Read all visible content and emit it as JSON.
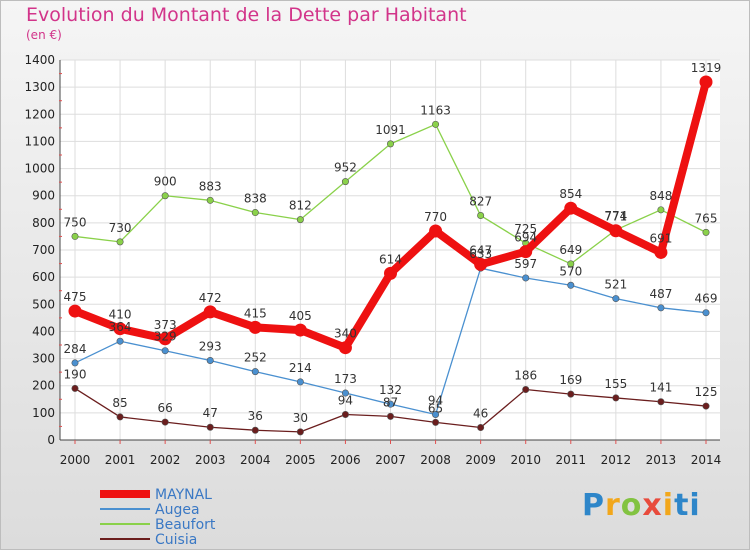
{
  "title": "Evolution du Montant de la Dette par Habitant",
  "subtitle": "(en €)",
  "logo": "Proxiti",
  "chart_data": {
    "type": "line",
    "x": [
      2000,
      2001,
      2002,
      2003,
      2004,
      2005,
      2006,
      2007,
      2008,
      2009,
      2010,
      2011,
      2012,
      2013,
      2014
    ],
    "ylim": [
      0,
      1400
    ],
    "yticks": [
      0,
      100,
      200,
      300,
      400,
      500,
      600,
      700,
      800,
      900,
      1000,
      1100,
      1200,
      1300,
      1400
    ],
    "grid": true,
    "legend_position": "bottom-left",
    "series": [
      {
        "name": "Augea",
        "color": "#4a90d0",
        "values": [
          284,
          364,
          329,
          293,
          252,
          214,
          173,
          132,
          94,
          633,
          597,
          570,
          521,
          487,
          469
        ]
      },
      {
        "name": "Beaufort",
        "color": "#8ad14a",
        "values": [
          750,
          730,
          900,
          883,
          838,
          812,
          952,
          1091,
          1163,
          827,
          725,
          649,
          774,
          848,
          765
        ]
      },
      {
        "name": "Cuisia",
        "color": "#6b1e1e",
        "values": [
          190,
          85,
          66,
          47,
          36,
          30,
          94,
          87,
          65,
          46,
          186,
          169,
          155,
          141,
          125
        ]
      },
      {
        "name": "MAYNAL",
        "color": "#ee1111",
        "values": [
          475,
          410,
          373,
          472,
          415,
          405,
          340,
          614,
          770,
          647,
          694,
          854,
          771,
          691,
          1319
        ]
      }
    ],
    "legend_order": [
      "MAYNAL",
      "Augea",
      "Beaufort",
      "Cuisia"
    ]
  }
}
